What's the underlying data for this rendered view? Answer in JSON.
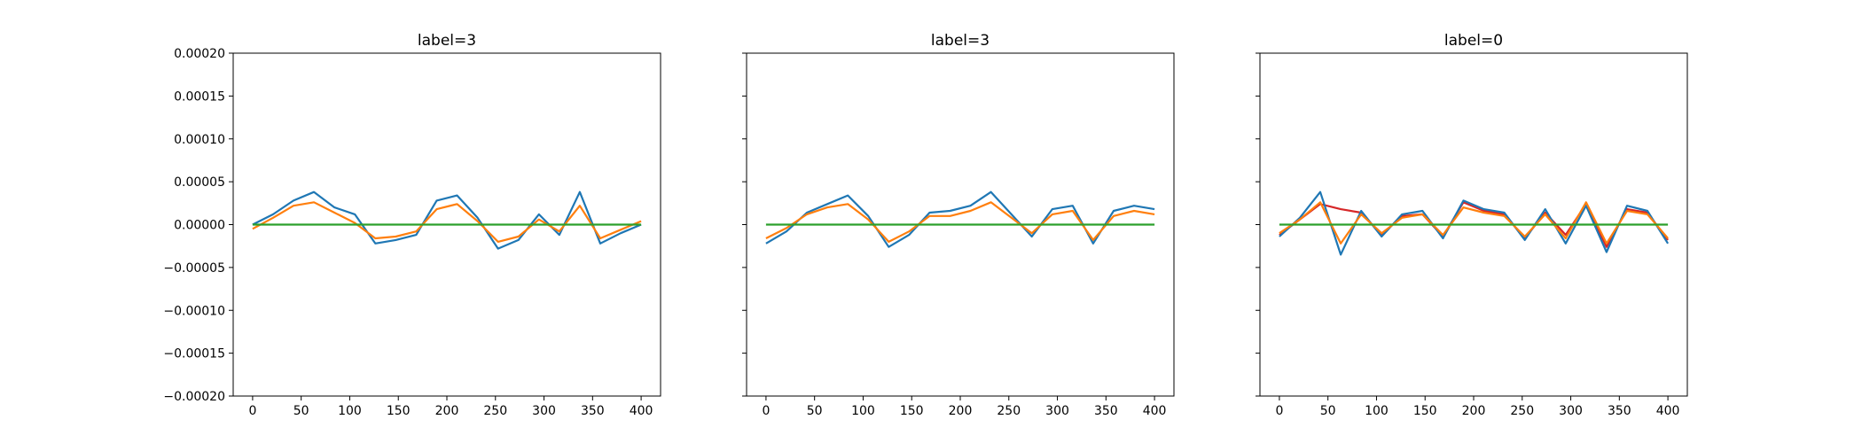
{
  "chart_data": [
    {
      "type": "line",
      "title": "label=3",
      "xlabel": "",
      "ylabel": "",
      "xlim": [
        -20,
        420
      ],
      "ylim": [
        -0.0002,
        0.0002
      ],
      "x_ticks": [
        0,
        50,
        100,
        150,
        200,
        250,
        300,
        350,
        400
      ],
      "x_tick_labels": [
        "0",
        "50",
        "100",
        "150",
        "200",
        "250",
        "300",
        "350",
        "400"
      ],
      "y_ticks": [
        -0.0002,
        -0.00015,
        -0.0001,
        -5e-05,
        0,
        5e-05,
        0.0001,
        0.00015,
        0.0002
      ],
      "y_tick_labels": [
        "−0.00020",
        "−0.00015",
        "−0.00010",
        "−0.00005",
        "0.00000",
        "0.00005",
        "0.00010",
        "0.00015",
        "0.00020"
      ],
      "show_y_tick_labels": true,
      "grid": false,
      "x_range": [
        0,
        400
      ],
      "series": [
        {
          "color": "#1f77b4",
          "values": [
            0.0,
            1.2e-05,
            2.8e-05,
            3.8e-05,
            2e-05,
            1.2e-05,
            -2.2e-05,
            -1.8e-05,
            -1.2e-05,
            2.8e-05,
            3.4e-05,
            8e-06,
            -2.8e-05,
            -1.8e-05,
            1.2e-05,
            -1.2e-05,
            3.8e-05,
            -2.2e-05,
            -1e-05,
            0.0
          ]
        },
        {
          "color": "#ff7f0e",
          "values": [
            -5e-06,
            8e-06,
            2.2e-05,
            2.6e-05,
            1.4e-05,
            2e-06,
            -1.6e-05,
            -1.4e-05,
            -8e-06,
            1.8e-05,
            2.4e-05,
            4e-06,
            -2e-05,
            -1.4e-05,
            6e-06,
            -8e-06,
            2.2e-05,
            -1.6e-05,
            -6e-06,
            4e-06
          ]
        },
        {
          "color": "#2ca02c",
          "values": [
            0.0,
            0.0,
            0.0,
            0.0,
            0.0,
            0.0,
            0.0,
            0.0,
            0.0,
            0.0,
            0.0,
            0.0,
            0.0,
            0.0,
            0.0,
            0.0,
            0.0,
            0.0,
            0.0,
            0.0
          ]
        }
      ]
    },
    {
      "type": "line",
      "title": "label=3",
      "xlabel": "",
      "ylabel": "",
      "xlim": [
        -20,
        420
      ],
      "ylim": [
        -0.0002,
        0.0002
      ],
      "x_ticks": [
        0,
        50,
        100,
        150,
        200,
        250,
        300,
        350,
        400
      ],
      "x_tick_labels": [
        "0",
        "50",
        "100",
        "150",
        "200",
        "250",
        "300",
        "350",
        "400"
      ],
      "y_ticks": [
        -0.0002,
        -0.00015,
        -0.0001,
        -5e-05,
        0,
        5e-05,
        0.0001,
        0.00015,
        0.0002
      ],
      "y_tick_labels": [],
      "show_y_tick_labels": false,
      "grid": false,
      "x_range": [
        0,
        400
      ],
      "series": [
        {
          "color": "#1f77b4",
          "values": [
            -2.2e-05,
            -8e-06,
            1.4e-05,
            2.4e-05,
            3.4e-05,
            1e-05,
            -2.6e-05,
            -1.2e-05,
            1.4e-05,
            1.6e-05,
            2.2e-05,
            3.8e-05,
            1.2e-05,
            -1.4e-05,
            1.8e-05,
            2.2e-05,
            -2.2e-05,
            1.6e-05,
            2.2e-05,
            1.8e-05
          ]
        },
        {
          "color": "#ff7f0e",
          "values": [
            -1.6e-05,
            -4e-06,
            1.2e-05,
            2e-05,
            2.4e-05,
            6e-06,
            -2e-05,
            -8e-06,
            1e-05,
            1e-05,
            1.6e-05,
            2.6e-05,
            8e-06,
            -1e-05,
            1.2e-05,
            1.6e-05,
            -1.8e-05,
            1e-05,
            1.6e-05,
            1.2e-05
          ]
        },
        {
          "color": "#2ca02c",
          "values": [
            0.0,
            0.0,
            0.0,
            0.0,
            0.0,
            0.0,
            0.0,
            0.0,
            0.0,
            0.0,
            0.0,
            0.0,
            0.0,
            0.0,
            0.0,
            0.0,
            0.0,
            0.0,
            0.0,
            0.0
          ]
        }
      ]
    },
    {
      "type": "line",
      "title": "label=0",
      "xlabel": "",
      "ylabel": "",
      "xlim": [
        -20,
        420
      ],
      "ylim": [
        -0.0002,
        0.0002
      ],
      "x_ticks": [
        0,
        50,
        100,
        150,
        200,
        250,
        300,
        350,
        400
      ],
      "x_tick_labels": [
        "0",
        "50",
        "100",
        "150",
        "200",
        "250",
        "300",
        "350",
        "400"
      ],
      "y_ticks": [
        -0.0002,
        -0.00015,
        -0.0001,
        -5e-05,
        0,
        5e-05,
        0.0001,
        0.00015,
        0.0002
      ],
      "y_tick_labels": [],
      "show_y_tick_labels": false,
      "grid": false,
      "x_range": [
        0,
        400
      ],
      "series": [
        {
          "color": "#d62728",
          "values": [
            -1.2e-05,
            6e-06,
            2.4e-05,
            1.8e-05,
            1.4e-05,
            -1.2e-05,
            1e-05,
            1.2e-05,
            -1.4e-05,
            2.6e-05,
            1.6e-05,
            1.2e-05,
            -1.6e-05,
            1.4e-05,
            -1.2e-05,
            2.4e-05,
            -2.6e-05,
            1.8e-05,
            1.4e-05,
            -1.8e-05
          ]
        },
        {
          "color": "#1f77b4",
          "values": [
            -1.4e-05,
            8e-06,
            3.8e-05,
            -3.5e-05,
            1.6e-05,
            -1.4e-05,
            1.2e-05,
            1.6e-05,
            -1.6e-05,
            2.8e-05,
            1.8e-05,
            1.4e-05,
            -1.8e-05,
            1.8e-05,
            -2.2e-05,
            2.2e-05,
            -3.2e-05,
            2.2e-05,
            1.6e-05,
            -2.2e-05
          ]
        },
        {
          "color": "#ff7f0e",
          "values": [
            -1e-05,
            6e-06,
            2.6e-05,
            -2.2e-05,
            1.2e-05,
            -1e-05,
            8e-06,
            1.2e-05,
            -1.2e-05,
            2e-05,
            1.4e-05,
            1e-05,
            -1.4e-05,
            1.2e-05,
            -1.6e-05,
            2.6e-05,
            -2.2e-05,
            1.6e-05,
            1.2e-05,
            -1.6e-05
          ]
        },
        {
          "color": "#2ca02c",
          "values": [
            0.0,
            0.0,
            0.0,
            0.0,
            0.0,
            0.0,
            0.0,
            0.0,
            0.0,
            0.0,
            0.0,
            0.0,
            0.0,
            0.0,
            0.0,
            0.0,
            0.0,
            0.0,
            0.0,
            0.0
          ]
        }
      ]
    }
  ]
}
